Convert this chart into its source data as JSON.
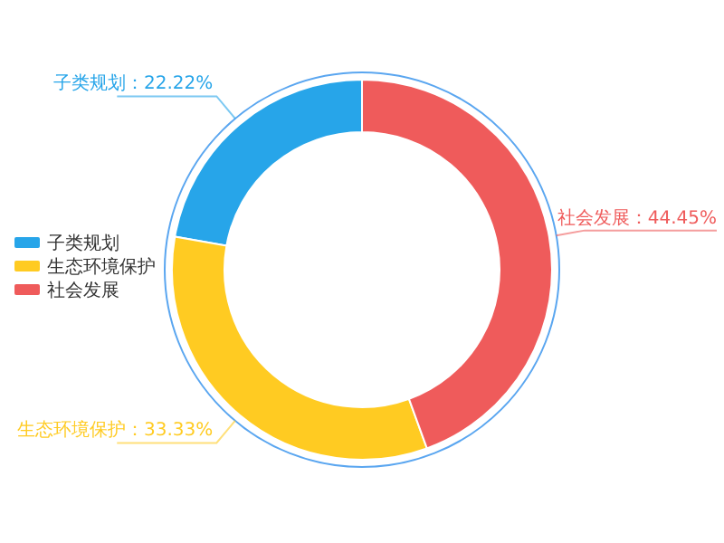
{
  "chart_data": {
    "type": "donut",
    "categories": [
      "子类规划",
      "生态环境保护",
      "社会发展"
    ],
    "values": [
      22.22,
      33.33,
      44.45
    ],
    "colors": [
      "#27a5e9",
      "#ffcb22",
      "#ef5b5b"
    ],
    "value_labels": [
      "子类规划：22.22%",
      "生态环境保护：33.33%",
      "社会发展：44.45%"
    ],
    "legend": "left"
  }
}
